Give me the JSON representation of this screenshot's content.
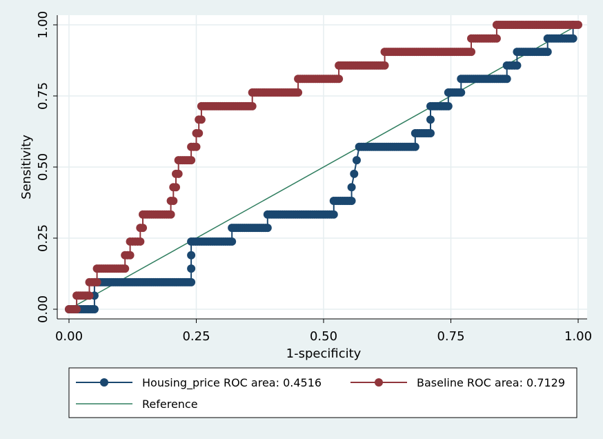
{
  "chart_data": {
    "type": "line",
    "xlabel": "1-specificity",
    "ylabel": "Sensitivity",
    "xlim": [
      0,
      1
    ],
    "ylim": [
      0,
      1
    ],
    "x_ticks": [
      "0.00",
      "0.25",
      "0.50",
      "0.75",
      "1.00"
    ],
    "y_ticks": [
      "0.00",
      "0.25",
      "0.50",
      "0.75",
      "1.00"
    ],
    "grid": true,
    "legend_position": "bottom",
    "colors": {
      "background": "#eaf2f3",
      "plot_bg": "#ffffff",
      "grid": "#e6eef0"
    },
    "series": [
      {
        "name": "Housing_price ROC area: 0.4516",
        "color": "#1a476f",
        "marker": "circle",
        "points": [
          [
            0.0,
            0.0
          ],
          [
            0.05,
            0.0
          ],
          [
            0.05,
            0.048
          ],
          [
            0.05,
            0.095
          ],
          [
            0.24,
            0.095
          ],
          [
            0.24,
            0.143
          ],
          [
            0.24,
            0.19
          ],
          [
            0.24,
            0.238
          ],
          [
            0.32,
            0.238
          ],
          [
            0.32,
            0.286
          ],
          [
            0.39,
            0.286
          ],
          [
            0.39,
            0.333
          ],
          [
            0.52,
            0.333
          ],
          [
            0.52,
            0.381
          ],
          [
            0.555,
            0.381
          ],
          [
            0.555,
            0.429
          ],
          [
            0.56,
            0.476
          ],
          [
            0.565,
            0.524
          ],
          [
            0.57,
            0.571
          ],
          [
            0.68,
            0.571
          ],
          [
            0.68,
            0.619
          ],
          [
            0.71,
            0.619
          ],
          [
            0.71,
            0.667
          ],
          [
            0.71,
            0.714
          ],
          [
            0.745,
            0.714
          ],
          [
            0.745,
            0.762
          ],
          [
            0.77,
            0.762
          ],
          [
            0.77,
            0.81
          ],
          [
            0.86,
            0.81
          ],
          [
            0.86,
            0.857
          ],
          [
            0.88,
            0.857
          ],
          [
            0.88,
            0.905
          ],
          [
            0.94,
            0.905
          ],
          [
            0.94,
            0.952
          ],
          [
            0.99,
            0.952
          ],
          [
            0.99,
            1.0
          ]
        ]
      },
      {
        "name": "Baseline ROC area: 0.7129",
        "color": "#90353b",
        "marker": "circle",
        "points": [
          [
            0.0,
            0.0
          ],
          [
            0.015,
            0.0
          ],
          [
            0.015,
            0.048
          ],
          [
            0.04,
            0.048
          ],
          [
            0.04,
            0.095
          ],
          [
            0.055,
            0.095
          ],
          [
            0.055,
            0.143
          ],
          [
            0.11,
            0.143
          ],
          [
            0.11,
            0.19
          ],
          [
            0.12,
            0.19
          ],
          [
            0.12,
            0.238
          ],
          [
            0.14,
            0.238
          ],
          [
            0.14,
            0.286
          ],
          [
            0.145,
            0.286
          ],
          [
            0.145,
            0.333
          ],
          [
            0.2,
            0.333
          ],
          [
            0.2,
            0.381
          ],
          [
            0.205,
            0.381
          ],
          [
            0.205,
            0.429
          ],
          [
            0.21,
            0.429
          ],
          [
            0.21,
            0.476
          ],
          [
            0.215,
            0.476
          ],
          [
            0.215,
            0.524
          ],
          [
            0.24,
            0.524
          ],
          [
            0.24,
            0.571
          ],
          [
            0.25,
            0.571
          ],
          [
            0.25,
            0.619
          ],
          [
            0.255,
            0.619
          ],
          [
            0.255,
            0.667
          ],
          [
            0.26,
            0.667
          ],
          [
            0.26,
            0.714
          ],
          [
            0.36,
            0.714
          ],
          [
            0.36,
            0.762
          ],
          [
            0.45,
            0.762
          ],
          [
            0.45,
            0.81
          ],
          [
            0.53,
            0.81
          ],
          [
            0.53,
            0.857
          ],
          [
            0.62,
            0.857
          ],
          [
            0.62,
            0.905
          ],
          [
            0.79,
            0.905
          ],
          [
            0.79,
            0.952
          ],
          [
            0.84,
            0.952
          ],
          [
            0.84,
            1.0
          ],
          [
            1.0,
            1.0
          ]
        ]
      },
      {
        "name": "Reference",
        "color": "#2e7d5e",
        "marker": "none",
        "points": [
          [
            0,
            0
          ],
          [
            1,
            1
          ]
        ]
      }
    ]
  }
}
